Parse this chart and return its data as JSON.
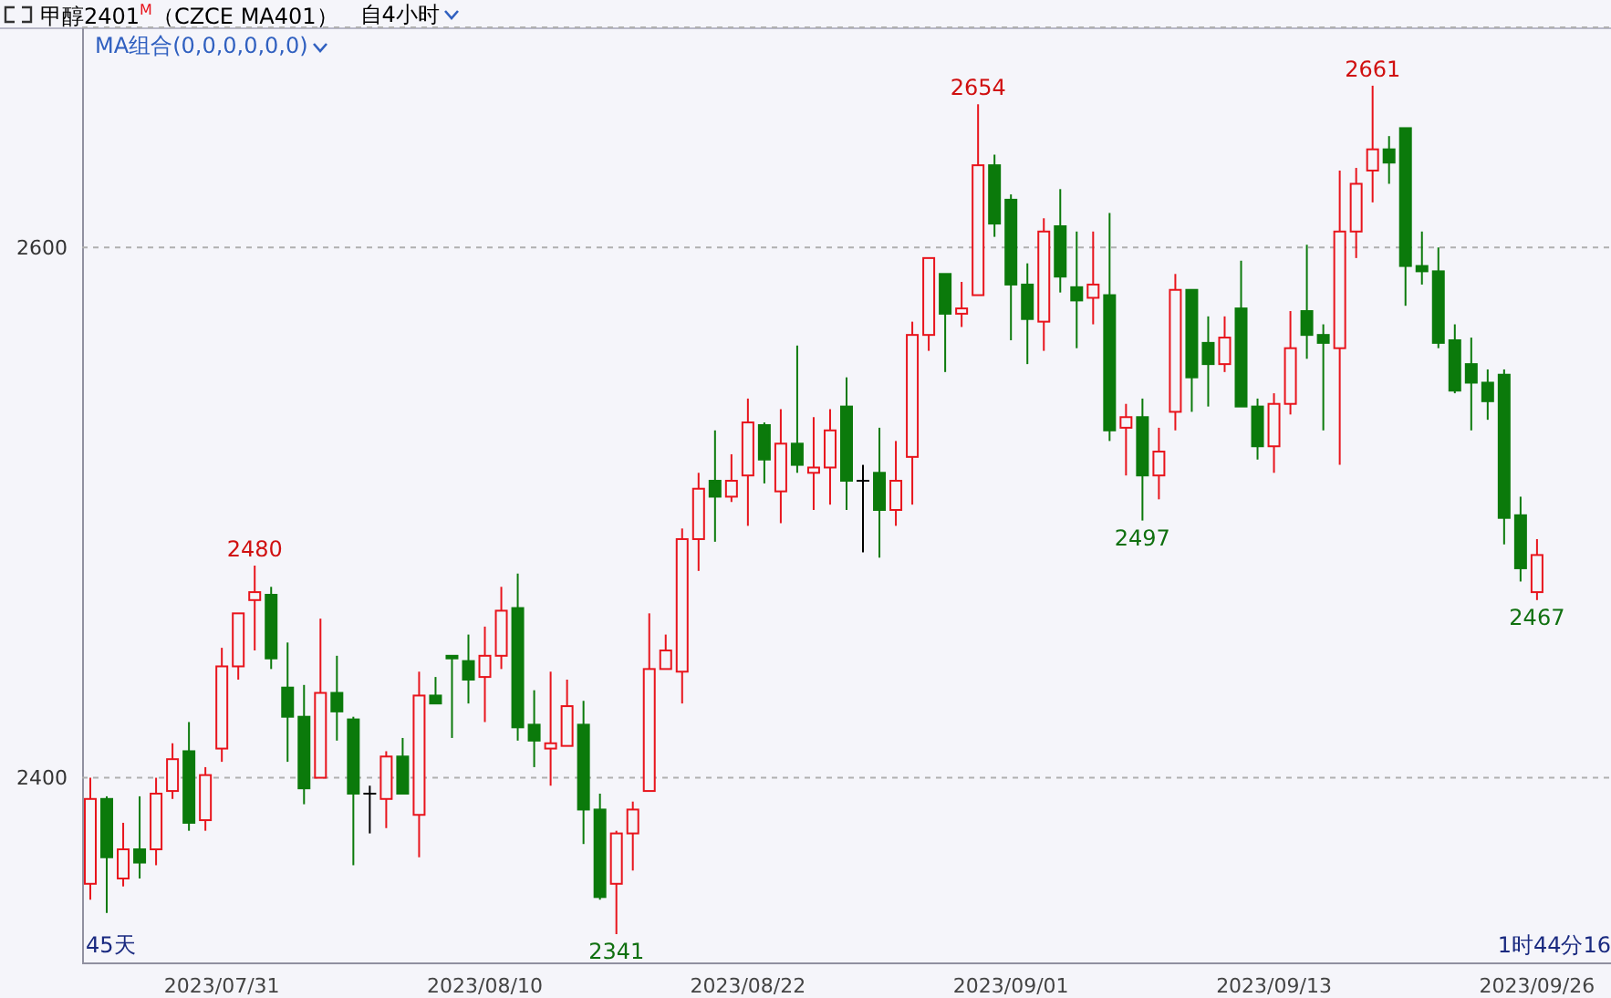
{
  "chart_data": {
    "type": "candlestick",
    "title": "甲醇2401$^{M}$（CZCE MA401）",
    "subtitle": "自4小时",
    "categories": [
      null,
      null,
      null,
      null,
      null,
      null,
      null,
      null,
      "2023/07/31",
      null,
      null,
      null,
      null,
      null,
      null,
      null,
      null,
      null,
      null,
      null,
      null,
      null,
      null,
      null,
      "2023/08/10",
      null,
      null,
      null,
      null,
      null,
      null,
      null,
      null,
      null,
      null,
      null,
      null,
      null,
      null,
      null,
      "2023/08/22",
      null,
      null,
      null,
      null,
      null,
      null,
      null,
      null,
      null,
      null,
      null,
      null,
      null,
      null,
      null,
      "2023/09/01",
      null,
      null,
      null,
      null,
      null,
      null,
      null,
      null,
      null,
      null,
      null,
      null,
      null,
      null,
      null,
      "2023/09/13",
      null,
      null,
      null,
      null,
      null,
      null,
      null,
      null,
      null,
      null,
      null,
      null,
      null,
      null,
      null,
      "2023/09/26"
    ],
    "ohlc": [
      [
        2360,
        2400,
        2354,
        2392
      ],
      [
        2392,
        2393,
        2349,
        2370
      ],
      [
        2362,
        2383,
        2359,
        2373
      ],
      [
        2373,
        2393,
        2362,
        2368
      ],
      [
        2373,
        2400,
        2367,
        2394
      ],
      [
        2395,
        2413,
        2392,
        2407
      ],
      [
        2410,
        2421,
        2380,
        2383
      ],
      [
        2384,
        2404,
        2380,
        2401
      ],
      [
        2411,
        2449,
        2406,
        2442
      ],
      [
        2442,
        2462,
        2437,
        2462
      ],
      [
        2467,
        2480,
        2448,
        2470
      ],
      [
        2469,
        2472,
        2441,
        2445
      ],
      [
        2434,
        2451,
        2406,
        2423
      ],
      [
        2423,
        2435,
        2390,
        2396
      ],
      [
        2400,
        2460,
        2400,
        2432
      ],
      [
        2432,
        2446,
        2414,
        2425
      ],
      [
        2422,
        2423,
        2367,
        2394
      ],
      [
        2394,
        2397,
        2379,
        2394
      ],
      [
        2392,
        2410,
        2381,
        2408
      ],
      [
        2408,
        2415,
        2394,
        2394
      ],
      [
        2386,
        2440,
        2370,
        2431
      ],
      [
        2431,
        2438,
        2428,
        2428
      ],
      [
        2446,
        2446,
        2415,
        2445
      ],
      [
        2444,
        2454,
        2428,
        2437
      ],
      [
        2438,
        2457,
        2421,
        2446
      ],
      [
        2446,
        2472,
        2441,
        2463
      ],
      [
        2464,
        2477,
        2414,
        2419
      ],
      [
        2420,
        2433,
        2404,
        2414
      ],
      [
        2411,
        2440,
        2397,
        2413
      ],
      [
        2412,
        2437,
        2412,
        2427
      ],
      [
        2420,
        2429,
        2375,
        2388
      ],
      [
        2388,
        2394,
        2354,
        2355
      ],
      [
        2360,
        2380,
        2341,
        2379
      ],
      [
        2379,
        2391,
        2365,
        2388
      ],
      [
        2395,
        2462,
        2395,
        2441
      ],
      [
        2441,
        2454,
        2441,
        2448
      ],
      [
        2440,
        2494,
        2428,
        2490
      ],
      [
        2490,
        2515,
        2478,
        2509
      ],
      [
        2512,
        2531,
        2489,
        2506
      ],
      [
        2506,
        2522,
        2504,
        2512
      ],
      [
        2514,
        2543,
        2495,
        2534
      ],
      [
        2533,
        2534,
        2511,
        2520
      ],
      [
        2508,
        2539,
        2496,
        2526
      ],
      [
        2526,
        2563,
        2515,
        2518
      ],
      [
        2515,
        2536,
        2501,
        2517
      ],
      [
        2517,
        2539,
        2503,
        2531
      ],
      [
        2540,
        2551,
        2501,
        2512
      ],
      [
        2512,
        2518,
        2485,
        2512
      ],
      [
        2515,
        2532,
        2483,
        2501
      ],
      [
        2501,
        2527,
        2495,
        2512
      ],
      [
        2521,
        2572,
        2503,
        2567
      ],
      [
        2567,
        2596,
        2561,
        2596
      ],
      [
        2590,
        2590,
        2553,
        2575
      ],
      [
        2575,
        2587,
        2570,
        2577
      ],
      [
        2582,
        2654,
        2582,
        2631
      ],
      [
        2631,
        2635,
        2604,
        2609
      ],
      [
        2618,
        2620,
        2565,
        2586
      ],
      [
        2586,
        2594,
        2556,
        2573
      ],
      [
        2572,
        2611,
        2561,
        2606
      ],
      [
        2608,
        2622,
        2583,
        2589
      ],
      [
        2585,
        2606,
        2562,
        2580
      ],
      [
        2581,
        2606,
        2571,
        2586
      ],
      [
        2582,
        2613,
        2527,
        2531
      ],
      [
        2532,
        2541,
        2514,
        2536
      ],
      [
        2536,
        2543,
        2497,
        2514
      ],
      [
        2514,
        2532,
        2505,
        2523
      ],
      [
        2538,
        2590,
        2531,
        2584
      ],
      [
        2584,
        2584,
        2538,
        2551
      ],
      [
        2564,
        2574,
        2540,
        2556
      ],
      [
        2556,
        2574,
        2553,
        2566
      ],
      [
        2577,
        2595,
        2540,
        2540
      ],
      [
        2540,
        2543,
        2520,
        2525
      ],
      [
        2525,
        2545,
        2515,
        2541
      ],
      [
        2541,
        2576,
        2537,
        2562
      ],
      [
        2576,
        2601,
        2558,
        2567
      ],
      [
        2567,
        2571,
        2531,
        2564
      ],
      [
        2562,
        2629,
        2518,
        2606
      ],
      [
        2606,
        2630,
        2596,
        2624
      ],
      [
        2629,
        2661,
        2617,
        2637
      ],
      [
        2637,
        2642,
        2624,
        2632
      ],
      [
        2645,
        2645,
        2578,
        2593
      ],
      [
        2593,
        2606,
        2586,
        2591
      ],
      [
        2591,
        2600,
        2562,
        2564
      ],
      [
        2565,
        2571,
        2545,
        2546
      ],
      [
        2556,
        2566,
        2531,
        2549
      ],
      [
        2549,
        2554,
        2535,
        2542
      ],
      [
        2552,
        2554,
        2488,
        2498
      ],
      [
        2499,
        2506,
        2474,
        2479
      ],
      [
        2470,
        2490,
        2467,
        2484
      ]
    ],
    "colors": [
      "#e8141c",
      "#0b7a0b",
      "#e8141c",
      "#0b7a0b",
      "#e8141c",
      "#e8141c",
      "#0b7a0b",
      "#e8141c",
      "#e8141c",
      "#e8141c",
      "#e8141c",
      "#0b7a0b",
      "#0b7a0b",
      "#0b7a0b",
      "#e8141c",
      "#0b7a0b",
      "#0b7a0b",
      "#000000",
      "#e8141c",
      "#0b7a0b",
      "#e8141c",
      "#0b7a0b",
      "#0b7a0b",
      "#0b7a0b",
      "#e8141c",
      "#e8141c",
      "#0b7a0b",
      "#0b7a0b",
      "#e8141c",
      "#e8141c",
      "#0b7a0b",
      "#0b7a0b",
      "#e8141c",
      "#e8141c",
      "#e8141c",
      "#e8141c",
      "#e8141c",
      "#e8141c",
      "#0b7a0b",
      "#e8141c",
      "#e8141c",
      "#0b7a0b",
      "#e8141c",
      "#0b7a0b",
      "#e8141c",
      "#e8141c",
      "#0b7a0b",
      "#000000",
      "#0b7a0b",
      "#e8141c",
      "#e8141c",
      "#e8141c",
      "#0b7a0b",
      "#e8141c",
      "#e8141c",
      "#0b7a0b",
      "#0b7a0b",
      "#0b7a0b",
      "#e8141c",
      "#0b7a0b",
      "#0b7a0b",
      "#e8141c",
      "#0b7a0b",
      "#e8141c",
      "#0b7a0b",
      "#e8141c",
      "#e8141c",
      "#0b7a0b",
      "#0b7a0b",
      "#e8141c",
      "#0b7a0b",
      "#0b7a0b",
      "#e8141c",
      "#e8141c",
      "#0b7a0b",
      "#0b7a0b",
      "#e8141c",
      "#e8141c",
      "#e8141c",
      "#0b7a0b",
      "#0b7a0b",
      "#0b7a0b",
      "#0b7a0b",
      "#0b7a0b",
      "#0b7a0b",
      "#0b7a0b",
      "#0b7a0b",
      "#0b7a0b",
      "#e8141c"
    ],
    "ylim": [
      2330,
      2683
    ],
    "yticks": [
      2400,
      2600
    ],
    "grid": "y",
    "annotations": [
      "MA组合(0,0,0,0,0,0)",
      "45天",
      "1时44分16",
      {
        "text": "2480",
        "y": 2480
      },
      {
        "text": "2341",
        "y": 2341
      },
      {
        "text": "2654",
        "y": 2654
      },
      {
        "text": "2497",
        "y": 2497
      },
      {
        "text": "2661",
        "y": 2661
      },
      {
        "text": "2467",
        "y": 2467
      }
    ]
  }
}
